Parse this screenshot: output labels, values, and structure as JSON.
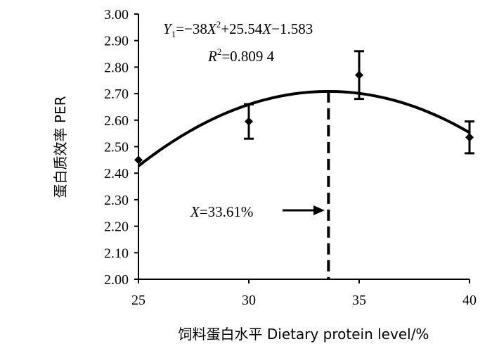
{
  "chart_data": {
    "type": "scatter",
    "xlabel": "饲料蛋白水平  Dietary protein level/%",
    "ylabel": "蛋白质效率  PER",
    "xlim": [
      25,
      40
    ],
    "ylim": [
      2.0,
      3.0
    ],
    "x_ticks": [
      "25",
      "30",
      "35",
      "40"
    ],
    "y_ticks": [
      "2.00",
      "2.10",
      "2.20",
      "2.30",
      "2.40",
      "2.50",
      "2.60",
      "2.70",
      "2.80",
      "2.90",
      "3.00"
    ],
    "grid": false,
    "points": [
      {
        "x": 25,
        "y": 2.45,
        "err": 0.0
      },
      {
        "x": 30,
        "y": 2.595,
        "err": 0.065
      },
      {
        "x": 35,
        "y": 2.77,
        "err": 0.09
      },
      {
        "x": 40,
        "y": 2.535,
        "err": 0.06
      }
    ],
    "fit_curve": {
      "a": -38,
      "b": 25.54,
      "c": -1.583,
      "note": "x in fraction (X = level/100)"
    },
    "optimum_x": 33.61,
    "annotations": {
      "eq_lhs": "Y",
      "eq_sub": "1",
      "eq_mid1": "=−38",
      "eq_x": "X",
      "eq_sup": "2",
      "eq_mid2": "+25.54",
      "eq_x2": "X",
      "eq_end": "−1.583",
      "r2_r": "R",
      "r2_sup": "2",
      "r2_val": "=0.809 4",
      "opt_x": "X",
      "opt_val": "=33.61%"
    }
  }
}
